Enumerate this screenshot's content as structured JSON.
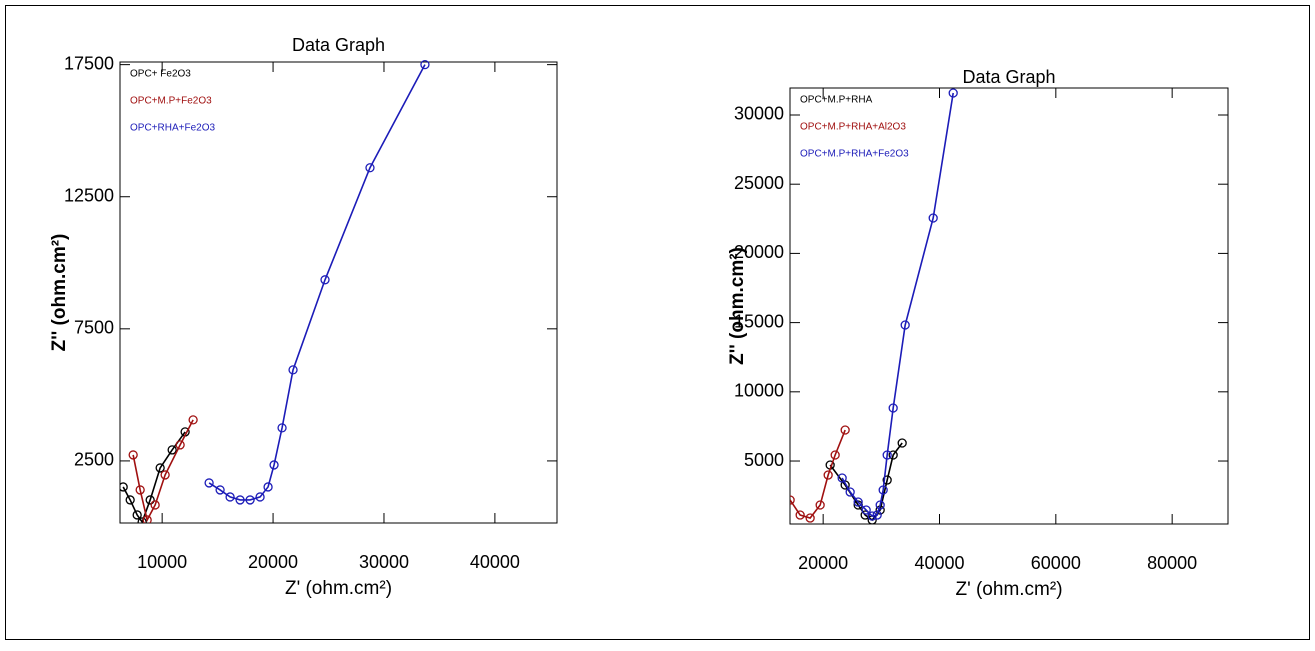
{
  "chart_data": [
    {
      "type": "line",
      "title": "Data Graph",
      "xlabel": "Z' (ohm.cm²)",
      "ylabel": "Z'' (ohm.cm²)",
      "xlim": [
        6200,
        45600
      ],
      "ylim": [
        150,
        17600
      ],
      "xticks": [
        10000,
        20000,
        30000,
        40000
      ],
      "yticks": [
        2500,
        7500,
        12500,
        17500
      ],
      "legend": "upper left",
      "series": [
        {
          "name": "OPC+ Fe2O3",
          "color": "#000000",
          "x": [
            6486,
            7117,
            7748,
            8198,
            8919,
            9820,
            10901,
            12072
          ],
          "values": [
            1515,
            1023,
            455,
            190,
            1023,
            2235,
            2917,
            3598
          ]
        },
        {
          "name": "OPC+M.P+Fe2O3",
          "color": "#a01010",
          "x": [
            7387,
            8018,
            8649,
            9369,
            10270,
            11622,
            12793
          ],
          "values": [
            2727,
            1402,
            265,
            833,
            1970,
            3106,
            4053
          ]
        },
        {
          "name": "OPC+RHA+Fe2O3",
          "color": "#1c1cb8",
          "x": [
            14234,
            15225,
            16126,
            17027,
            17928,
            18829,
            19550,
            20090,
            20811,
            21802,
            24685,
            28739,
            33694
          ],
          "values": [
            1667,
            1402,
            1136,
            1023,
            1023,
            1136,
            1515,
            2348,
            3750,
            5947,
            9356,
            13598,
            17500
          ]
        }
      ]
    },
    {
      "type": "line",
      "title": "Data Graph",
      "xlabel": "Z' (ohm.cm²)",
      "ylabel": "Z'' (ohm.cm²)",
      "xlim": [
        14300,
        89600
      ],
      "ylim": [
        450,
        31950
      ],
      "xticks": [
        20000,
        40000,
        60000,
        80000
      ],
      "yticks": [
        5000,
        10000,
        15000,
        20000,
        25000,
        30000
      ],
      "legend": "upper left",
      "series": [
        {
          "name": "OPC+M.P+RHA",
          "color": "#000000",
          "x": [
            21204,
            23783,
            26019,
            27223,
            28427,
            29802,
            31006,
            32038,
            33585
          ],
          "values": [
            4711,
            3266,
            1821,
            1098,
            737,
            1460,
            3627,
            5434,
            6301
          ]
        },
        {
          "name": "OPC+M.P+RHA+Al2O3",
          "color": "#a01010",
          "x": [
            14325,
            16045,
            17764,
            19484,
            20860,
            22064,
            23783
          ],
          "values": [
            2182,
            1098,
            881,
            1821,
            3988,
            5434,
            7240
          ]
        },
        {
          "name": "OPC+M.P+RHA+Fe2O3",
          "color": "#1c1cb8",
          "x": [
            23267,
            24643,
            26019,
            27395,
            28427,
            29286,
            29802,
            30318,
            31006,
            32038,
            34101,
            38916,
            42356
          ],
          "values": [
            3772,
            2760,
            2037,
            1460,
            1026,
            1098,
            1821,
            2905,
            5434,
            8829,
            14827,
            22558,
            31590
          ]
        }
      ]
    }
  ]
}
